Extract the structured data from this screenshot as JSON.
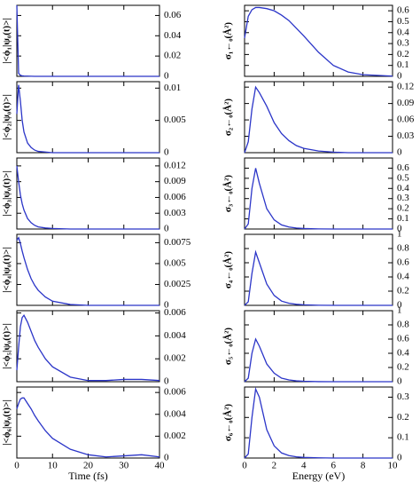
{
  "chart_data": [
    {
      "type": "line",
      "ylabel": "|<ϕ₁|ψ₀(t)>|",
      "color": "#2b35c8",
      "x": [
        0,
        0.5,
        1,
        1.5,
        2,
        3,
        4,
        5,
        6,
        8,
        10,
        15,
        20,
        25,
        30,
        35,
        40
      ],
      "values": [
        0.07,
        0.003,
        0.001,
        0.0005,
        0.0003,
        0.0002,
        0.0001,
        0,
        0,
        0,
        0,
        0,
        0,
        0,
        0,
        0,
        0
      ],
      "xlim": [
        0,
        40
      ],
      "xticks": [
        0,
        10,
        20,
        30,
        40
      ],
      "ylim": [
        0,
        0.07
      ],
      "yticks": [
        0,
        0.02,
        0.04,
        0.06
      ]
    },
    {
      "type": "line",
      "ylabel": "|<ϕ₂|ψ₀(t)>|",
      "color": "#2b35c8",
      "x": [
        0,
        0.5,
        1,
        1.5,
        2,
        3,
        4,
        5,
        6,
        8,
        10,
        15,
        20,
        25,
        30,
        35,
        40
      ],
      "values": [
        0.006,
        0.0105,
        0.008,
        0.005,
        0.0032,
        0.0015,
        0.0008,
        0.0004,
        0.0002,
        0.0001,
        0,
        0,
        0,
        0,
        0,
        0,
        0
      ],
      "xlim": [
        0,
        40
      ],
      "xticks": [
        0,
        10,
        20,
        30,
        40
      ],
      "ylim": [
        0,
        0.011
      ],
      "yticks": [
        0,
        0.005,
        0.01
      ]
    },
    {
      "type": "line",
      "ylabel": "|<ϕ₃|ψ₀(t)>|",
      "color": "#2b35c8",
      "x": [
        0,
        0.5,
        1,
        1.5,
        2,
        3,
        4,
        5,
        6,
        8,
        10,
        15,
        20,
        25,
        30,
        35,
        40
      ],
      "values": [
        0.012,
        0.009,
        0.0065,
        0.0048,
        0.0036,
        0.002,
        0.0012,
        0.0007,
        0.0004,
        0.0002,
        0.0001,
        0,
        0,
        0,
        0,
        0,
        0
      ],
      "xlim": [
        0,
        40
      ],
      "xticks": [
        0,
        10,
        20,
        30,
        40
      ],
      "ylim": [
        0,
        0.0135
      ],
      "yticks": [
        0,
        0.003,
        0.006,
        0.009,
        0.012
      ]
    },
    {
      "type": "line",
      "ylabel": "|<ϕ₄|ψ₀(t)>|",
      "color": "#2b35c8",
      "x": [
        0,
        0.5,
        1,
        1.5,
        2,
        3,
        4,
        5,
        6,
        8,
        10,
        15,
        20,
        25,
        30,
        35,
        40
      ],
      "values": [
        0.0078,
        0.0081,
        0.0074,
        0.0065,
        0.0057,
        0.0043,
        0.0032,
        0.0024,
        0.0018,
        0.001,
        0.0005,
        0.0001,
        0,
        0,
        0,
        0,
        0
      ],
      "xlim": [
        0,
        40
      ],
      "xticks": [
        0,
        10,
        20,
        30,
        40
      ],
      "ylim": [
        0,
        0.0085
      ],
      "yticks": [
        0,
        0.0025,
        0.005,
        0.0075
      ]
    },
    {
      "type": "line",
      "ylabel": "|<ϕ₅|ψ₀(t)>|",
      "color": "#2b35c8",
      "x": [
        0,
        0.5,
        1,
        1.5,
        2,
        3,
        4,
        5,
        6,
        8,
        10,
        15,
        20,
        25,
        30,
        35,
        40
      ],
      "values": [
        0.001,
        0.003,
        0.0048,
        0.0056,
        0.0058,
        0.0052,
        0.0044,
        0.0036,
        0.003,
        0.002,
        0.0013,
        0.0004,
        0.0001,
        0.0001,
        0.0002,
        0.0002,
        0.0001
      ],
      "xlim": [
        0,
        40
      ],
      "xticks": [
        0,
        10,
        20,
        30,
        40
      ],
      "ylim": [
        0,
        0.0062
      ],
      "yticks": [
        0,
        0.002,
        0.004,
        0.006
      ]
    },
    {
      "type": "line",
      "ylabel": "|<ϕ₆|ψ₀(t)>|",
      "xlabel": "Time (fs)",
      "color": "#2b35c8",
      "x": [
        0,
        0.5,
        1,
        1.5,
        2,
        3,
        4,
        5,
        6,
        8,
        10,
        15,
        20,
        25,
        30,
        35,
        40
      ],
      "values": [
        0.0045,
        0.005,
        0.0054,
        0.0055,
        0.0055,
        0.005,
        0.0045,
        0.0039,
        0.0034,
        0.0025,
        0.0018,
        0.0008,
        0.0003,
        0.0001,
        0.0002,
        0.0003,
        0.0001
      ],
      "xlim": [
        0,
        40
      ],
      "xticks": [
        0,
        10,
        20,
        30,
        40
      ],
      "ylim": [
        0,
        0.0065
      ],
      "yticks": [
        0,
        0.002,
        0.004,
        0.006
      ]
    },
    {
      "type": "line",
      "ylabel": "σ₁←₀(Å²)",
      "color": "#2b35c8",
      "x": [
        0,
        0.25,
        0.5,
        0.75,
        1,
        1.5,
        2,
        2.5,
        3,
        3.5,
        4,
        5,
        6,
        7,
        8,
        10
      ],
      "values": [
        0.35,
        0.55,
        0.61,
        0.63,
        0.63,
        0.62,
        0.6,
        0.56,
        0.51,
        0.44,
        0.37,
        0.22,
        0.1,
        0.04,
        0.015,
        0.002
      ],
      "xlim": [
        0,
        10
      ],
      "xticks": [
        0,
        2,
        4,
        6,
        8,
        10
      ],
      "ylim": [
        0,
        0.65
      ],
      "yticks": [
        0,
        0.1,
        0.2,
        0.3,
        0.4,
        0.5,
        0.6
      ]
    },
    {
      "type": "line",
      "ylabel": "σ₂←₀(Å²)",
      "color": "#2b35c8",
      "x": [
        0,
        0.25,
        0.5,
        0.75,
        1,
        1.5,
        2,
        2.5,
        3,
        3.5,
        4,
        5,
        6,
        7,
        8,
        10
      ],
      "values": [
        0,
        0.02,
        0.08,
        0.12,
        0.11,
        0.085,
        0.055,
        0.035,
        0.022,
        0.013,
        0.008,
        0.003,
        0.001,
        0,
        0,
        0
      ],
      "xlim": [
        0,
        10
      ],
      "xticks": [
        0,
        2,
        4,
        6,
        8,
        10
      ],
      "ylim": [
        0,
        0.13
      ],
      "yticks": [
        0,
        0.03,
        0.06,
        0.09,
        0.12
      ]
    },
    {
      "type": "line",
      "ylabel": "σ₃←₀(Å²)",
      "color": "#2b35c8",
      "x": [
        0,
        0.25,
        0.5,
        0.75,
        1,
        1.5,
        2,
        2.5,
        3,
        3.5,
        4,
        5,
        6,
        7,
        8,
        10
      ],
      "values": [
        0,
        0.05,
        0.4,
        0.6,
        0.45,
        0.2,
        0.09,
        0.04,
        0.02,
        0.01,
        0.005,
        0.001,
        0,
        0,
        0,
        0
      ],
      "xlim": [
        0,
        10
      ],
      "xticks": [
        0,
        2,
        4,
        6,
        8,
        10
      ],
      "ylim": [
        0,
        0.7
      ],
      "yticks": [
        0,
        0.1,
        0.2,
        0.3,
        0.4,
        0.5,
        0.6
      ]
    },
    {
      "type": "line",
      "ylabel": "σ₄←₀(Å²)",
      "color": "#2b35c8",
      "x": [
        0,
        0.25,
        0.5,
        0.75,
        1,
        1.5,
        2,
        2.5,
        3,
        3.5,
        4,
        5,
        6,
        7,
        8,
        10
      ],
      "values": [
        0,
        0.05,
        0.45,
        0.75,
        0.6,
        0.3,
        0.14,
        0.06,
        0.03,
        0.015,
        0.008,
        0.002,
        0,
        0,
        0,
        0
      ],
      "xlim": [
        0,
        10
      ],
      "xticks": [
        0,
        2,
        4,
        6,
        8,
        10
      ],
      "ylim": [
        0,
        1
      ],
      "yticks": [
        0,
        0.2,
        0.4,
        0.6,
        0.8,
        1
      ]
    },
    {
      "type": "line",
      "ylabel": "σ₅←₀(Å²)",
      "color": "#2b35c8",
      "x": [
        0,
        0.25,
        0.5,
        0.75,
        1,
        1.5,
        2,
        2.5,
        3,
        3.5,
        4,
        5,
        6,
        7,
        8,
        10
      ],
      "values": [
        0,
        0.05,
        0.4,
        0.6,
        0.5,
        0.25,
        0.12,
        0.05,
        0.025,
        0.012,
        0.006,
        0.001,
        0,
        0,
        0,
        0
      ],
      "xlim": [
        0,
        10
      ],
      "xticks": [
        0,
        2,
        4,
        6,
        8,
        10
      ],
      "ylim": [
        0,
        1
      ],
      "yticks": [
        0,
        0.2,
        0.4,
        0.6,
        0.8,
        1
      ]
    },
    {
      "type": "line",
      "ylabel": "σ₆←₀(Å²)",
      "xlabel": "Energy (eV)",
      "color": "#2b35c8",
      "x": [
        0,
        0.25,
        0.5,
        0.75,
        1,
        1.5,
        2,
        2.5,
        3,
        3.5,
        4,
        5,
        6,
        7,
        8,
        10
      ],
      "values": [
        0,
        0.02,
        0.2,
        0.34,
        0.3,
        0.14,
        0.06,
        0.025,
        0.012,
        0.006,
        0.003,
        0.001,
        0,
        0,
        0,
        0
      ],
      "xlim": [
        0,
        10
      ],
      "xticks": [
        0,
        2,
        4,
        6,
        8,
        10
      ],
      "ylim": [
        0,
        0.35
      ],
      "yticks": [
        0,
        0.1,
        0.2,
        0.3
      ]
    }
  ]
}
